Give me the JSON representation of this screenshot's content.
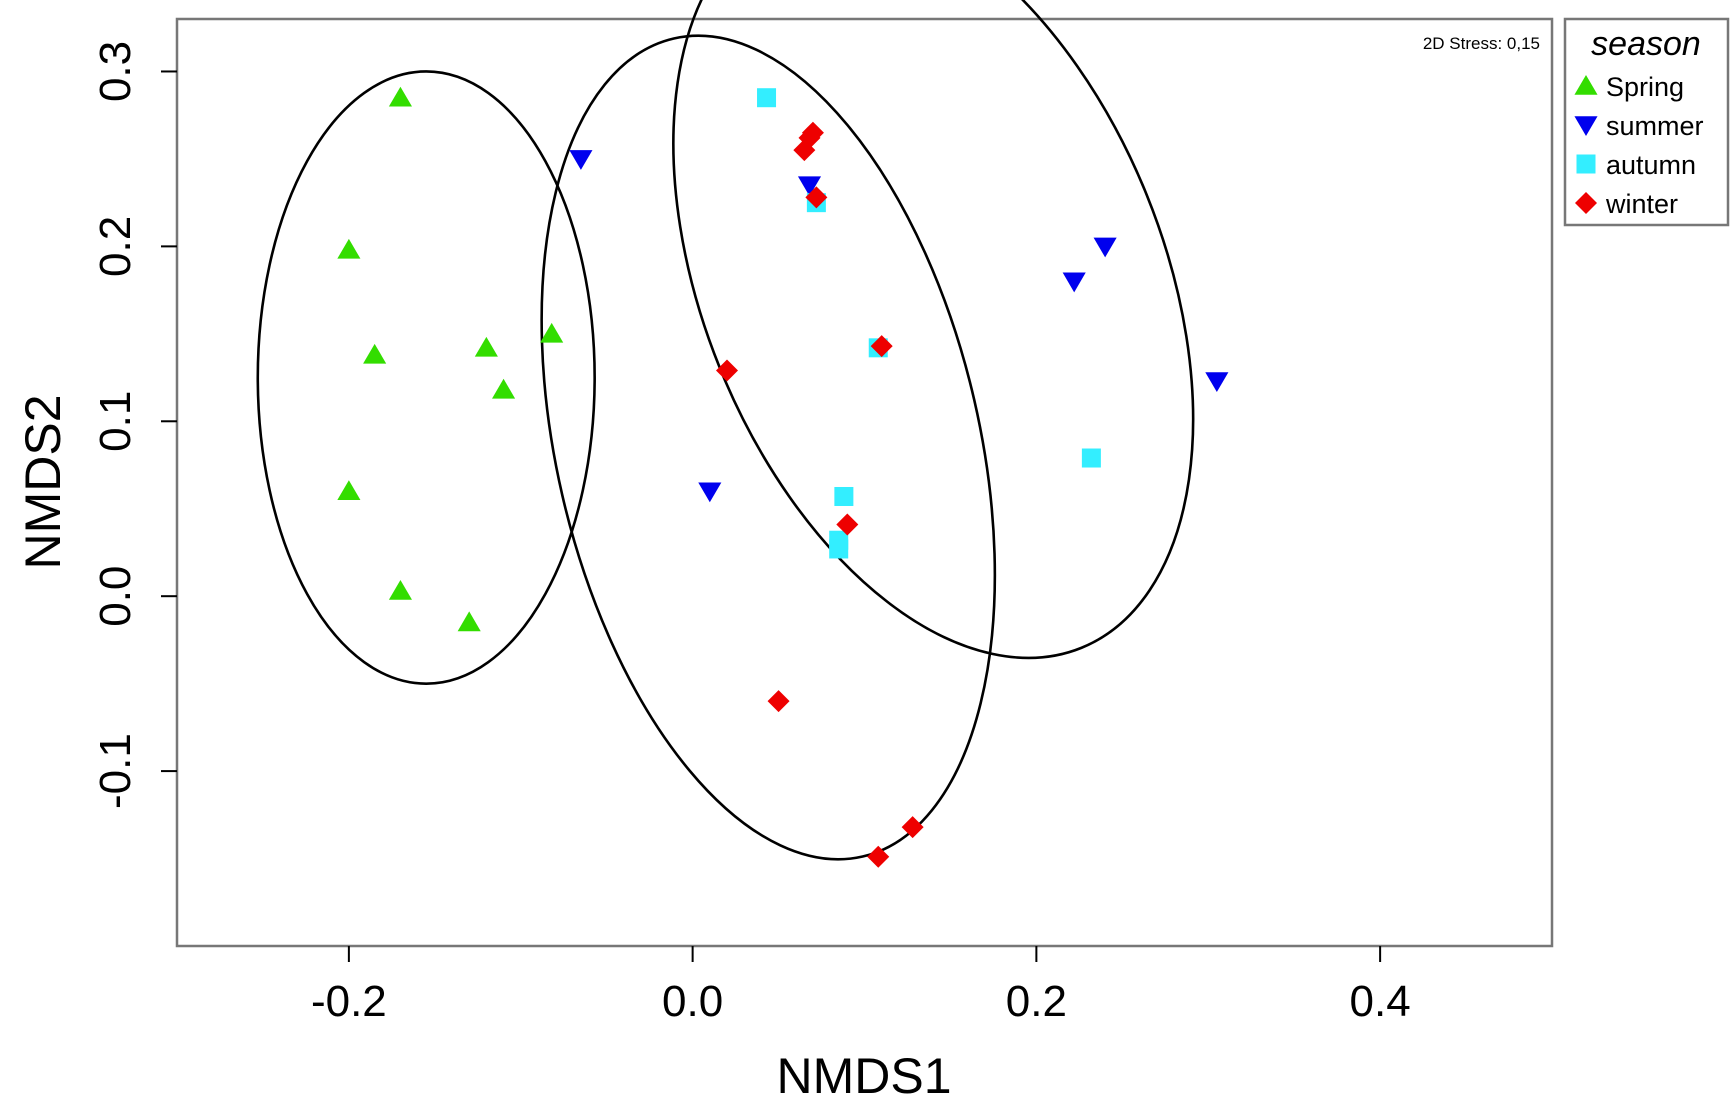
{
  "chart_data": {
    "type": "scatter",
    "xlabel": "NMDS1",
    "ylabel": "NMDS2",
    "xlim": [
      -0.3,
      0.5
    ],
    "ylim": [
      -0.2,
      0.33
    ],
    "x_ticks": [
      -0.2,
      0.0,
      0.2,
      0.4
    ],
    "x_tick_labels": [
      "-0.2",
      "0.0",
      "0.2",
      "0.4"
    ],
    "y_ticks": [
      -0.1,
      0.0,
      0.1,
      0.2,
      0.3
    ],
    "y_tick_labels": [
      "-0.1",
      "0.0",
      "0.1",
      "0.2",
      "0.3"
    ],
    "grid": false,
    "annotation": "2D Stress: 0,15",
    "legend": {
      "title": "season",
      "title_color": "#1a1aff",
      "placement": "top-right, outside plot"
    },
    "series": [
      {
        "name": "Spring",
        "marker": "triangle-up",
        "color": "#33dd00",
        "points": [
          [
            -0.17,
            0.285
          ],
          [
            -0.2,
            0.198
          ],
          [
            -0.185,
            0.138
          ],
          [
            -0.12,
            0.142
          ],
          [
            -0.11,
            0.118
          ],
          [
            -0.082,
            0.15
          ],
          [
            -0.2,
            0.06
          ],
          [
            -0.17,
            0.003
          ],
          [
            -0.13,
            -0.015
          ]
        ]
      },
      {
        "name": "summer",
        "marker": "triangle-down",
        "color": "#0000ee",
        "points": [
          [
            -0.065,
            0.25
          ],
          [
            0.068,
            0.235
          ],
          [
            0.222,
            0.18
          ],
          [
            0.24,
            0.2
          ],
          [
            0.305,
            0.123
          ],
          [
            0.01,
            0.06
          ]
        ]
      },
      {
        "name": "autumn",
        "marker": "square",
        "color": "#33eeff",
        "points": [
          [
            0.043,
            0.285
          ],
          [
            0.072,
            0.225
          ],
          [
            0.108,
            0.142
          ],
          [
            0.088,
            0.057
          ],
          [
            0.085,
            0.032
          ],
          [
            0.085,
            0.027
          ],
          [
            0.232,
            0.079
          ]
        ]
      },
      {
        "name": "winter",
        "marker": "diamond",
        "color": "#ee0000",
        "points": [
          [
            0.068,
            0.262
          ],
          [
            0.065,
            0.255
          ],
          [
            0.07,
            0.265
          ],
          [
            0.072,
            0.228
          ],
          [
            0.11,
            0.143
          ],
          [
            0.02,
            0.129
          ],
          [
            0.09,
            0.041
          ],
          [
            0.05,
            -0.06
          ],
          [
            0.128,
            -0.132
          ],
          [
            0.108,
            -0.149
          ]
        ]
      }
    ],
    "ellipses": [
      {
        "cx": -0.155,
        "cy": 0.125,
        "rx": 0.098,
        "ry": 0.175,
        "angle_deg": 0,
        "color": "#000000"
      },
      {
        "cx": 0.044,
        "cy": 0.085,
        "rx": 0.123,
        "ry": 0.24,
        "angle_deg": -13,
        "color": "#000000"
      },
      {
        "cx": 0.14,
        "cy": 0.18,
        "rx": 0.134,
        "ry": 0.226,
        "angle_deg": -22,
        "color": "#000000"
      }
    ]
  }
}
